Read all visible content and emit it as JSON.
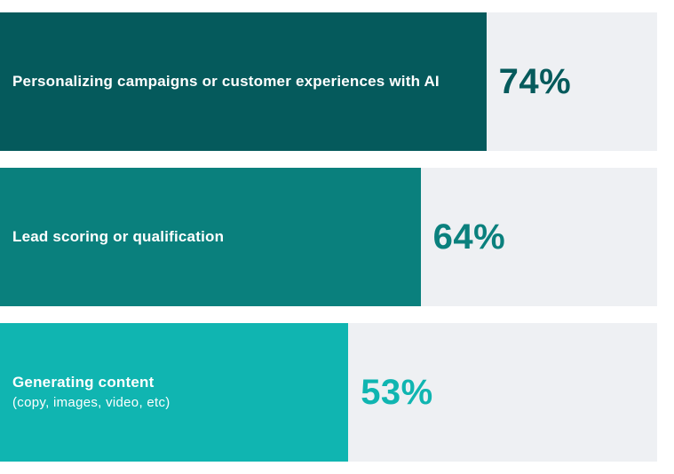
{
  "chart_data": {
    "type": "bar",
    "orientation": "horizontal",
    "title": "",
    "xlabel": "",
    "ylabel": "",
    "xlim": [
      0,
      100
    ],
    "grid": false,
    "legend": false,
    "categories": [
      "Personalizing campaigns or customer experiences with AI",
      "Lead scoring or qualification",
      "Generating content (copy, images, video, etc)"
    ],
    "values": [
      74,
      64,
      53
    ],
    "value_labels": [
      "74%",
      "64%",
      "53%"
    ]
  },
  "colors": {
    "track_background": "#eef0f3",
    "page_background": "#ffffff",
    "label_text": "#ffffff",
    "bar_dark_teal": "#055a5c",
    "bar_medium_teal": "#0a807d",
    "bar_turquoise": "#10b5b1"
  },
  "rows": [
    {
      "label": "Personalizing campaigns or customer experiences with AI",
      "sublabel": "",
      "value": 74,
      "pct_label": "74%",
      "bar_color": "#055a5c",
      "pct_color": "#055a5c"
    },
    {
      "label": "Lead scoring or qualification",
      "sublabel": "",
      "value": 64,
      "pct_label": "64%",
      "bar_color": "#0a807d",
      "pct_color": "#0a807d"
    },
    {
      "label": "Generating content",
      "sublabel": "(copy, images, video, etc)",
      "value": 53,
      "pct_label": "53%",
      "bar_color": "#10b5b1",
      "pct_color": "#10b5b1"
    }
  ]
}
